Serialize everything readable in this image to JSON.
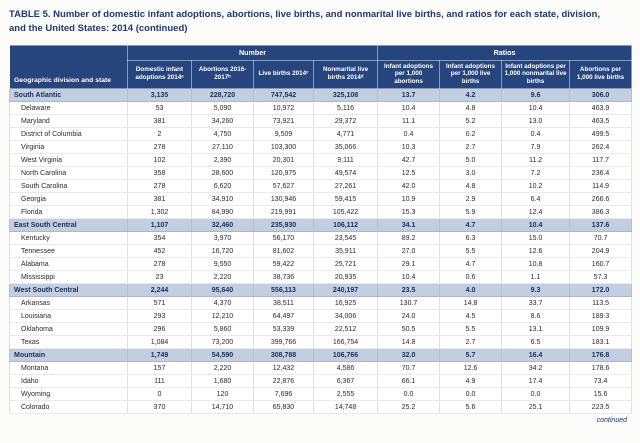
{
  "title": "TABLE 5. Number of domestic infant adoptions, abortions, live births, and nonmarital live births, and ratios for each state, division, and the United States: 2014 (continued)",
  "table": {
    "row_header": "Geographic division and state",
    "group_headers": [
      {
        "label": "Number",
        "span": 4
      },
      {
        "label": "Ratios",
        "span": 4
      }
    ],
    "columns": [
      "Domestic infant adoptions 2014ᵃ",
      "Abortions 2016-2017ᵇ",
      "Live births 2014ᶜ",
      "Nonmarital live births 2014ᵈ",
      "Infant adoptions per 1,000 abortions",
      "Infant adoptions per 1,000 live births",
      "Infant adoptions per 1,000 nonmarital live births",
      "Abortions per 1,000 live births"
    ],
    "rows": [
      {
        "name": "South Atlantic",
        "division": true,
        "values": [
          "3,135",
          "228,720",
          "747,542",
          "325,108",
          "13.7",
          "4.2",
          "9.6",
          "306.0"
        ]
      },
      {
        "name": "Delaware",
        "division": false,
        "values": [
          "53",
          "5,090",
          "10,972",
          "5,116",
          "10.4",
          "4.8",
          "10.4",
          "463.9"
        ]
      },
      {
        "name": "Maryland",
        "division": false,
        "values": [
          "381",
          "34,260",
          "73,921",
          "29,372",
          "11.1",
          "5.2",
          "13.0",
          "463.5"
        ]
      },
      {
        "name": "District of Columbia",
        "division": false,
        "values": [
          "2",
          "4,750",
          "9,509",
          "4,771",
          "0.4",
          "0.2",
          "0.4",
          "499.5"
        ]
      },
      {
        "name": "Virginia",
        "division": false,
        "values": [
          "278",
          "27,110",
          "103,300",
          "35,066",
          "10.3",
          "2.7",
          "7.9",
          "262.4"
        ]
      },
      {
        "name": "West Virginia",
        "division": false,
        "values": [
          "102",
          "2,390",
          "20,301",
          "9,111",
          "42.7",
          "5.0",
          "11.2",
          "117.7"
        ]
      },
      {
        "name": "North Carolina",
        "division": false,
        "values": [
          "358",
          "28,600",
          "120,975",
          "49,574",
          "12.5",
          "3.0",
          "7.2",
          "236.4"
        ]
      },
      {
        "name": "South Carolina",
        "division": false,
        "values": [
          "278",
          "6,620",
          "57,627",
          "27,261",
          "42.0",
          "4.8",
          "10.2",
          "114.9"
        ]
      },
      {
        "name": "Georgia",
        "division": false,
        "values": [
          "381",
          "34,910",
          "130,946",
          "59,415",
          "10.9",
          "2.9",
          "6.4",
          "266.6"
        ]
      },
      {
        "name": "Florida",
        "division": false,
        "values": [
          "1,302",
          "84,990",
          "219,991",
          "105,422",
          "15.3",
          "5.9",
          "12.4",
          "386.3"
        ]
      },
      {
        "name": "East South Central",
        "division": true,
        "values": [
          "1,107",
          "32,460",
          "235,930",
          "106,112",
          "34.1",
          "4.7",
          "10.4",
          "137.6"
        ]
      },
      {
        "name": "Kentucky",
        "division": false,
        "values": [
          "354",
          "3,970",
          "56,170",
          "23,545",
          "89.2",
          "6.3",
          "15.0",
          "70.7"
        ]
      },
      {
        "name": "Tennessee",
        "division": false,
        "values": [
          "452",
          "16,720",
          "81,602",
          "35,911",
          "27.0",
          "5.5",
          "12.6",
          "204.9"
        ]
      },
      {
        "name": "Alabama",
        "division": false,
        "values": [
          "278",
          "9,550",
          "59,422",
          "25,721",
          "29.1",
          "4.7",
          "10.8",
          "160.7"
        ]
      },
      {
        "name": "Mississippi",
        "division": false,
        "values": [
          "23",
          "2,220",
          "38,736",
          "20,935",
          "10.4",
          "0.6",
          "1.1",
          "57.3"
        ]
      },
      {
        "name": "West South Central",
        "division": true,
        "values": [
          "2,244",
          "95,640",
          "556,113",
          "240,197",
          "23.5",
          "4.0",
          "9.3",
          "172.0"
        ]
      },
      {
        "name": "Arkansas",
        "division": false,
        "values": [
          "571",
          "4,370",
          "38,511",
          "16,925",
          "130.7",
          "14.8",
          "33.7",
          "113.5"
        ]
      },
      {
        "name": "Louisiana",
        "division": false,
        "values": [
          "293",
          "12,210",
          "64,497",
          "34,006",
          "24.0",
          "4.5",
          "8.6",
          "189.3"
        ]
      },
      {
        "name": "Oklahoma",
        "division": false,
        "values": [
          "296",
          "5,860",
          "53,339",
          "22,512",
          "50.5",
          "5.5",
          "13.1",
          "109.9"
        ]
      },
      {
        "name": "Texas",
        "division": false,
        "values": [
          "1,084",
          "73,200",
          "399,766",
          "166,754",
          "14.8",
          "2.7",
          "6.5",
          "183.1"
        ]
      },
      {
        "name": "Mountain",
        "division": true,
        "values": [
          "1,749",
          "54,590",
          "308,788",
          "106,766",
          "32.0",
          "5.7",
          "16.4",
          "176.8"
        ]
      },
      {
        "name": "Montana",
        "division": false,
        "values": [
          "157",
          "2,220",
          "12,432",
          "4,586",
          "70.7",
          "12.6",
          "34.2",
          "178.6"
        ]
      },
      {
        "name": "Idaho",
        "division": false,
        "values": [
          "111",
          "1,680",
          "22,876",
          "6,367",
          "66.1",
          "4.9",
          "17.4",
          "73.4"
        ]
      },
      {
        "name": "Wyoming",
        "division": false,
        "values": [
          "0",
          "120",
          "7,696",
          "2,555",
          "0.0",
          "0.0",
          "0.0",
          "15.6"
        ]
      },
      {
        "name": "Colorado",
        "division": false,
        "values": [
          "370",
          "14,710",
          "65,830",
          "14,748",
          "25.2",
          "5.6",
          "25.1",
          "223.5"
        ]
      }
    ],
    "footer": "continued"
  }
}
